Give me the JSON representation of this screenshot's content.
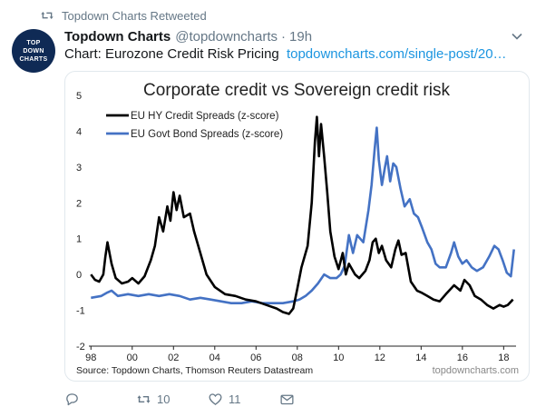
{
  "retweet_banner": {
    "text": "Topdown Charts Retweeted",
    "icon": "retweet-icon"
  },
  "avatar": {
    "line1": "TOP",
    "line2": "DOWN",
    "line3": "CHARTS",
    "color": "#0f2a55"
  },
  "tweet": {
    "display_name": "Topdown Charts",
    "handle": "@topdowncharts",
    "separator": "·",
    "time": "19h",
    "text": "Chart: Eurozone Credit Risk Pricing",
    "link": "topdowncharts.com/single-post/20…"
  },
  "actions": {
    "reply_count": "",
    "retweet_count": "10",
    "like_count": "11"
  },
  "colors": {
    "link": "#1b95e0",
    "hy_series": "#000000",
    "govt_series": "#4472c4",
    "muted": "#657786"
  },
  "chart_data": {
    "type": "line",
    "title": "Corporate credit vs Sovereign credit risk",
    "xlabel": "",
    "ylabel": "",
    "x_tick_labels": [
      "98",
      "00",
      "02",
      "04",
      "06",
      "08",
      "10",
      "12",
      "14",
      "16",
      "18"
    ],
    "y_tick_labels": [
      "5",
      "4",
      "3",
      "2",
      "1",
      "0",
      "-1",
      "-2"
    ],
    "xlim": [
      1997.9,
      2018.6
    ],
    "ylim": [
      -2,
      5
    ],
    "grid": false,
    "legend_position": "top-left",
    "source": "Source: Topdown Charts, Thomson Reuters Datastream",
    "watermark": "topdowncharts.com",
    "series": [
      {
        "name": "EU HY Credit Spreads (z-score)",
        "color": "#000000",
        "points": [
          [
            1998.0,
            0.0
          ],
          [
            1998.2,
            -0.15
          ],
          [
            1998.4,
            -0.2
          ],
          [
            1998.6,
            0.0
          ],
          [
            1998.7,
            0.5
          ],
          [
            1998.8,
            0.9
          ],
          [
            1999.0,
            0.3
          ],
          [
            1999.2,
            -0.1
          ],
          [
            1999.5,
            -0.25
          ],
          [
            1999.8,
            -0.2
          ],
          [
            2000.0,
            -0.1
          ],
          [
            2000.3,
            -0.25
          ],
          [
            2000.6,
            -0.05
          ],
          [
            2000.9,
            0.4
          ],
          [
            2001.1,
            0.8
          ],
          [
            2001.3,
            1.6
          ],
          [
            2001.5,
            1.2
          ],
          [
            2001.7,
            1.9
          ],
          [
            2001.85,
            1.5
          ],
          [
            2002.0,
            2.3
          ],
          [
            2002.15,
            1.8
          ],
          [
            2002.3,
            2.2
          ],
          [
            2002.5,
            1.6
          ],
          [
            2002.8,
            1.7
          ],
          [
            2003.0,
            1.2
          ],
          [
            2003.3,
            0.6
          ],
          [
            2003.6,
            0.0
          ],
          [
            2004.0,
            -0.35
          ],
          [
            2004.5,
            -0.55
          ],
          [
            2005.0,
            -0.6
          ],
          [
            2005.5,
            -0.7
          ],
          [
            2006.0,
            -0.75
          ],
          [
            2006.5,
            -0.85
          ],
          [
            2007.0,
            -0.95
          ],
          [
            2007.3,
            -1.05
          ],
          [
            2007.6,
            -1.1
          ],
          [
            2007.8,
            -0.95
          ],
          [
            2008.0,
            -0.4
          ],
          [
            2008.2,
            0.2
          ],
          [
            2008.5,
            0.8
          ],
          [
            2008.7,
            2.0
          ],
          [
            2008.85,
            3.7
          ],
          [
            2008.95,
            4.4
          ],
          [
            2009.05,
            3.3
          ],
          [
            2009.15,
            4.2
          ],
          [
            2009.3,
            3.3
          ],
          [
            2009.45,
            2.3
          ],
          [
            2009.6,
            1.2
          ],
          [
            2009.8,
            0.5
          ],
          [
            2010.0,
            0.15
          ],
          [
            2010.2,
            0.6
          ],
          [
            2010.35,
            0.0
          ],
          [
            2010.5,
            0.3
          ],
          [
            2010.8,
            0.0
          ],
          [
            2011.0,
            -0.1
          ],
          [
            2011.3,
            0.1
          ],
          [
            2011.5,
            0.4
          ],
          [
            2011.65,
            0.9
          ],
          [
            2011.8,
            1.0
          ],
          [
            2011.95,
            0.6
          ],
          [
            2012.1,
            0.8
          ],
          [
            2012.3,
            0.4
          ],
          [
            2012.55,
            0.2
          ],
          [
            2012.75,
            0.7
          ],
          [
            2012.9,
            0.95
          ],
          [
            2013.05,
            0.55
          ],
          [
            2013.25,
            0.6
          ],
          [
            2013.5,
            -0.2
          ],
          [
            2013.8,
            -0.45
          ],
          [
            2014.0,
            -0.5
          ],
          [
            2014.3,
            -0.6
          ],
          [
            2014.6,
            -0.7
          ],
          [
            2014.9,
            -0.75
          ],
          [
            2015.2,
            -0.55
          ],
          [
            2015.6,
            -0.3
          ],
          [
            2015.9,
            -0.45
          ],
          [
            2016.1,
            -0.15
          ],
          [
            2016.35,
            -0.3
          ],
          [
            2016.6,
            -0.6
          ],
          [
            2016.9,
            -0.7
          ],
          [
            2017.2,
            -0.85
          ],
          [
            2017.5,
            -0.95
          ],
          [
            2017.8,
            -0.85
          ],
          [
            2018.0,
            -0.9
          ],
          [
            2018.2,
            -0.85
          ],
          [
            2018.45,
            -0.7
          ]
        ]
      },
      {
        "name": "EU Govt Bond Spreads (z-score)",
        "color": "#4472c4",
        "points": [
          [
            1998.0,
            -0.65
          ],
          [
            1998.5,
            -0.6
          ],
          [
            1998.8,
            -0.5
          ],
          [
            1999.0,
            -0.45
          ],
          [
            1999.3,
            -0.6
          ],
          [
            1999.8,
            -0.55
          ],
          [
            2000.3,
            -0.6
          ],
          [
            2000.8,
            -0.55
          ],
          [
            2001.3,
            -0.6
          ],
          [
            2001.8,
            -0.55
          ],
          [
            2002.3,
            -0.6
          ],
          [
            2002.8,
            -0.7
          ],
          [
            2003.3,
            -0.65
          ],
          [
            2003.8,
            -0.7
          ],
          [
            2004.3,
            -0.75
          ],
          [
            2004.8,
            -0.8
          ],
          [
            2005.3,
            -0.8
          ],
          [
            2005.8,
            -0.75
          ],
          [
            2006.3,
            -0.8
          ],
          [
            2006.8,
            -0.8
          ],
          [
            2007.3,
            -0.8
          ],
          [
            2007.8,
            -0.75
          ],
          [
            2008.1,
            -0.7
          ],
          [
            2008.4,
            -0.6
          ],
          [
            2008.7,
            -0.45
          ],
          [
            2009.0,
            -0.25
          ],
          [
            2009.3,
            0.0
          ],
          [
            2009.6,
            -0.1
          ],
          [
            2009.9,
            -0.1
          ],
          [
            2010.1,
            0.0
          ],
          [
            2010.3,
            0.25
          ],
          [
            2010.5,
            1.1
          ],
          [
            2010.7,
            0.6
          ],
          [
            2010.9,
            1.1
          ],
          [
            2011.2,
            0.9
          ],
          [
            2011.45,
            1.8
          ],
          [
            2011.6,
            2.5
          ],
          [
            2011.75,
            3.5
          ],
          [
            2011.85,
            4.1
          ],
          [
            2011.95,
            3.2
          ],
          [
            2012.1,
            2.5
          ],
          [
            2012.25,
            3.0
          ],
          [
            2012.35,
            3.3
          ],
          [
            2012.5,
            2.6
          ],
          [
            2012.65,
            3.1
          ],
          [
            2012.8,
            3.0
          ],
          [
            2013.0,
            2.4
          ],
          [
            2013.2,
            1.9
          ],
          [
            2013.45,
            2.1
          ],
          [
            2013.65,
            1.7
          ],
          [
            2013.85,
            1.6
          ],
          [
            2014.05,
            1.3
          ],
          [
            2014.3,
            0.9
          ],
          [
            2014.5,
            0.7
          ],
          [
            2014.7,
            0.3
          ],
          [
            2014.9,
            0.2
          ],
          [
            2015.2,
            0.2
          ],
          [
            2015.45,
            0.6
          ],
          [
            2015.6,
            0.9
          ],
          [
            2015.8,
            0.5
          ],
          [
            2016.0,
            0.3
          ],
          [
            2016.2,
            0.4
          ],
          [
            2016.45,
            0.2
          ],
          [
            2016.7,
            0.1
          ],
          [
            2017.0,
            0.2
          ],
          [
            2017.3,
            0.5
          ],
          [
            2017.55,
            0.8
          ],
          [
            2017.75,
            0.7
          ],
          [
            2017.95,
            0.4
          ],
          [
            2018.15,
            0.05
          ],
          [
            2018.35,
            -0.05
          ],
          [
            2018.5,
            0.7
          ]
        ]
      }
    ]
  }
}
